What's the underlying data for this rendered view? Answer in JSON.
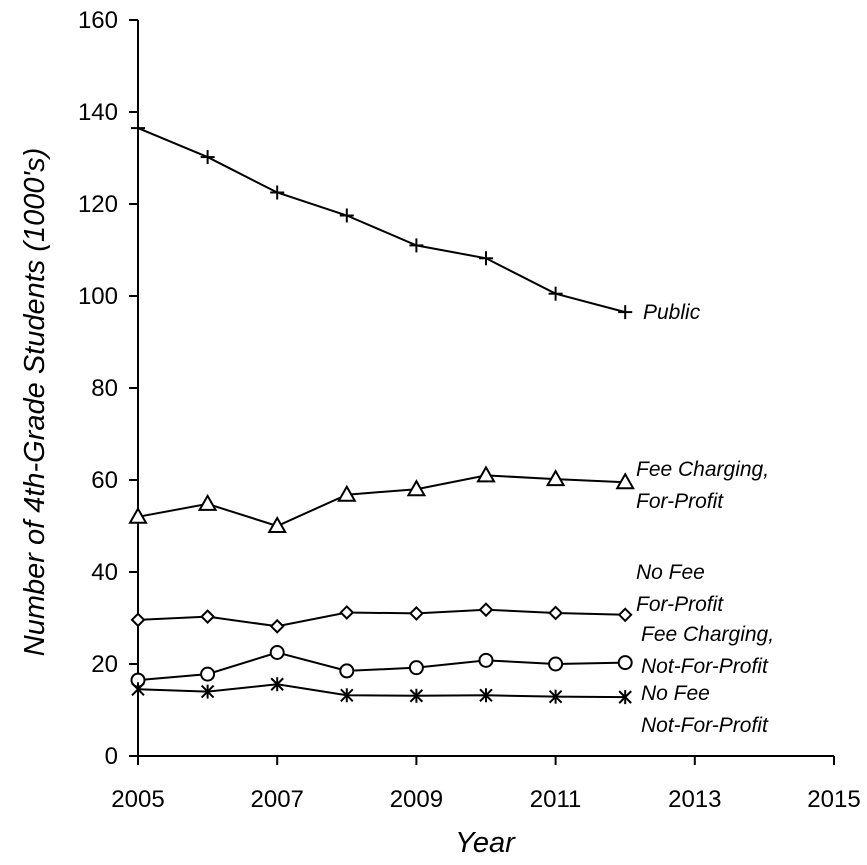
{
  "chart_data": {
    "type": "line",
    "title": "",
    "xlabel": "Year",
    "ylabel": "Number of 4th-Grade Students (1000's)",
    "xlim": [
      2005,
      2015
    ],
    "ylim": [
      0,
      160
    ],
    "x_ticks": [
      2005,
      2007,
      2009,
      2011,
      2013,
      2015
    ],
    "y_ticks": [
      0,
      20,
      40,
      60,
      80,
      100,
      120,
      140,
      160
    ],
    "grid": false,
    "legend": "none (series labelled directly at line ends)",
    "x": [
      2005,
      2006,
      2007,
      2008,
      2009,
      2010,
      2011,
      2012
    ],
    "series": [
      {
        "name": "Public",
        "label_lines": [
          "Public"
        ],
        "marker": "plus",
        "values": [
          136.5,
          130.2,
          122.5,
          117.5,
          111,
          108.2,
          100.5,
          96.5
        ]
      },
      {
        "name": "Fee Charging, For-Profit",
        "label_lines": [
          "Fee Charging,",
          "For-Profit"
        ],
        "marker": "triangle",
        "values": [
          52,
          54.8,
          50,
          56.8,
          58,
          61,
          60.2,
          59.5
        ]
      },
      {
        "name": "No Fee For-Profit",
        "label_lines": [
          "No Fee",
          "For-Profit"
        ],
        "marker": "diamond",
        "values": [
          29.6,
          30.3,
          28.2,
          31.2,
          31,
          31.8,
          31.1,
          30.7
        ]
      },
      {
        "name": "Fee Charging, Not-For-Profit",
        "label_lines": [
          "Fee Charging,",
          "Not-For-Profit"
        ],
        "marker": "circle",
        "values": [
          16.5,
          17.8,
          22.5,
          18.5,
          19.2,
          20.8,
          20,
          20.3
        ]
      },
      {
        "name": "No Fee Not-For-Profit",
        "label_lines": [
          "No Fee",
          "Not-For-Profit"
        ],
        "marker": "asterisk",
        "values": [
          14.5,
          14,
          15.6,
          13.2,
          13.1,
          13.2,
          12.9,
          12.8
        ]
      }
    ]
  }
}
